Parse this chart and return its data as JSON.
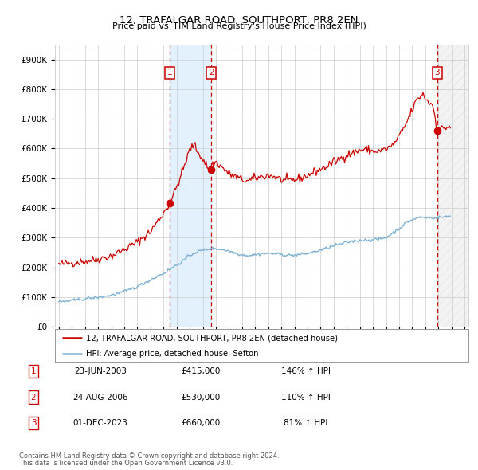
{
  "title": "12, TRAFALGAR ROAD, SOUTHPORT, PR8 2EN",
  "subtitle": "Price paid vs. HM Land Registry's House Price Index (HPI)",
  "red_label": "12, TRAFALGAR ROAD, SOUTHPORT, PR8 2EN (detached house)",
  "blue_label": "HPI: Average price, detached house, Sefton",
  "footnote1": "Contains HM Land Registry data © Crown copyright and database right 2024.",
  "footnote2": "This data is licensed under the Open Government Licence v3.0.",
  "transactions": [
    {
      "num": 1,
      "date": "23-JUN-2003",
      "price": 415000,
      "pct": "146%",
      "dir": "↑"
    },
    {
      "num": 2,
      "date": "24-AUG-2006",
      "price": 530000,
      "pct": "110%",
      "dir": "↑"
    },
    {
      "num": 3,
      "date": "01-DEC-2023",
      "price": 660000,
      "pct": "81%",
      "dir": "↑"
    }
  ],
  "ylim": [
    0,
    950000
  ],
  "yticks": [
    0,
    100000,
    200000,
    300000,
    400000,
    500000,
    600000,
    700000,
    800000,
    900000
  ],
  "xlim_start": 1994.7,
  "xlim_end": 2026.3,
  "background_color": "#ffffff",
  "grid_color": "#cccccc",
  "red_color": "#cc0000",
  "blue_color": "#7ab0d4",
  "vline_color": "#cc0000",
  "shade_color": "#ddeeff",
  "hatch_color": "#dddddd",
  "red_anchors": [
    [
      1995.0,
      210000
    ],
    [
      1996.0,
      215000
    ],
    [
      1997.0,
      220000
    ],
    [
      1998.0,
      228000
    ],
    [
      1999.0,
      238000
    ],
    [
      2000.0,
      260000
    ],
    [
      2001.0,
      285000
    ],
    [
      2002.0,
      320000
    ],
    [
      2002.8,
      370000
    ],
    [
      2003.47,
      415000
    ],
    [
      2004.0,
      470000
    ],
    [
      2004.5,
      530000
    ],
    [
      2004.8,
      570000
    ],
    [
      2005.0,
      595000
    ],
    [
      2005.3,
      615000
    ],
    [
      2005.6,
      590000
    ],
    [
      2006.0,
      565000
    ],
    [
      2006.47,
      530000
    ],
    [
      2006.7,
      545000
    ],
    [
      2007.0,
      555000
    ],
    [
      2007.5,
      535000
    ],
    [
      2008.0,
      515000
    ],
    [
      2008.5,
      505000
    ],
    [
      2009.0,
      495000
    ],
    [
      2009.5,
      490000
    ],
    [
      2010.0,
      500000
    ],
    [
      2010.5,
      505000
    ],
    [
      2011.0,
      510000
    ],
    [
      2011.5,
      505000
    ],
    [
      2012.0,
      495000
    ],
    [
      2012.5,
      490000
    ],
    [
      2013.0,
      495000
    ],
    [
      2013.5,
      500000
    ],
    [
      2014.0,
      510000
    ],
    [
      2014.5,
      520000
    ],
    [
      2015.0,
      530000
    ],
    [
      2015.5,
      540000
    ],
    [
      2016.0,
      555000
    ],
    [
      2016.5,
      565000
    ],
    [
      2017.0,
      580000
    ],
    [
      2017.5,
      585000
    ],
    [
      2018.0,
      595000
    ],
    [
      2018.5,
      598000
    ],
    [
      2019.0,
      590000
    ],
    [
      2019.5,
      592000
    ],
    [
      2020.0,
      598000
    ],
    [
      2020.5,
      610000
    ],
    [
      2021.0,
      640000
    ],
    [
      2021.5,
      680000
    ],
    [
      2022.0,
      730000
    ],
    [
      2022.3,
      760000
    ],
    [
      2022.6,
      775000
    ],
    [
      2022.8,
      785000
    ],
    [
      2023.0,
      770000
    ],
    [
      2023.3,
      755000
    ],
    [
      2023.6,
      745000
    ],
    [
      2023.92,
      660000
    ],
    [
      2024.1,
      665000
    ],
    [
      2024.5,
      670000
    ],
    [
      2024.9,
      675000
    ]
  ],
  "blue_anchors": [
    [
      1995.0,
      83000
    ],
    [
      1996.0,
      88000
    ],
    [
      1997.0,
      94000
    ],
    [
      1998.0,
      99000
    ],
    [
      1999.0,
      106000
    ],
    [
      2000.0,
      118000
    ],
    [
      2001.0,
      135000
    ],
    [
      2002.0,
      158000
    ],
    [
      2003.0,
      180000
    ],
    [
      2004.0,
      208000
    ],
    [
      2004.5,
      222000
    ],
    [
      2005.0,
      240000
    ],
    [
      2005.5,
      252000
    ],
    [
      2006.0,
      258000
    ],
    [
      2006.5,
      262000
    ],
    [
      2007.0,
      263000
    ],
    [
      2007.5,
      260000
    ],
    [
      2008.0,
      255000
    ],
    [
      2008.5,
      248000
    ],
    [
      2009.0,
      242000
    ],
    [
      2009.5,
      240000
    ],
    [
      2010.0,
      243000
    ],
    [
      2010.5,
      246000
    ],
    [
      2011.0,
      247000
    ],
    [
      2011.5,
      246000
    ],
    [
      2012.0,
      243000
    ],
    [
      2012.5,
      241000
    ],
    [
      2013.0,
      241000
    ],
    [
      2013.5,
      243000
    ],
    [
      2014.0,
      247000
    ],
    [
      2014.5,
      252000
    ],
    [
      2015.0,
      258000
    ],
    [
      2015.5,
      265000
    ],
    [
      2016.0,
      272000
    ],
    [
      2016.5,
      278000
    ],
    [
      2017.0,
      284000
    ],
    [
      2017.5,
      288000
    ],
    [
      2018.0,
      291000
    ],
    [
      2018.5,
      292000
    ],
    [
      2019.0,
      293000
    ],
    [
      2019.5,
      295000
    ],
    [
      2020.0,
      300000
    ],
    [
      2020.5,
      315000
    ],
    [
      2021.0,
      330000
    ],
    [
      2021.5,
      348000
    ],
    [
      2022.0,
      360000
    ],
    [
      2022.5,
      368000
    ],
    [
      2023.0,
      368000
    ],
    [
      2023.5,
      367000
    ],
    [
      2024.0,
      368000
    ],
    [
      2024.5,
      370000
    ],
    [
      2024.9,
      373000
    ]
  ]
}
